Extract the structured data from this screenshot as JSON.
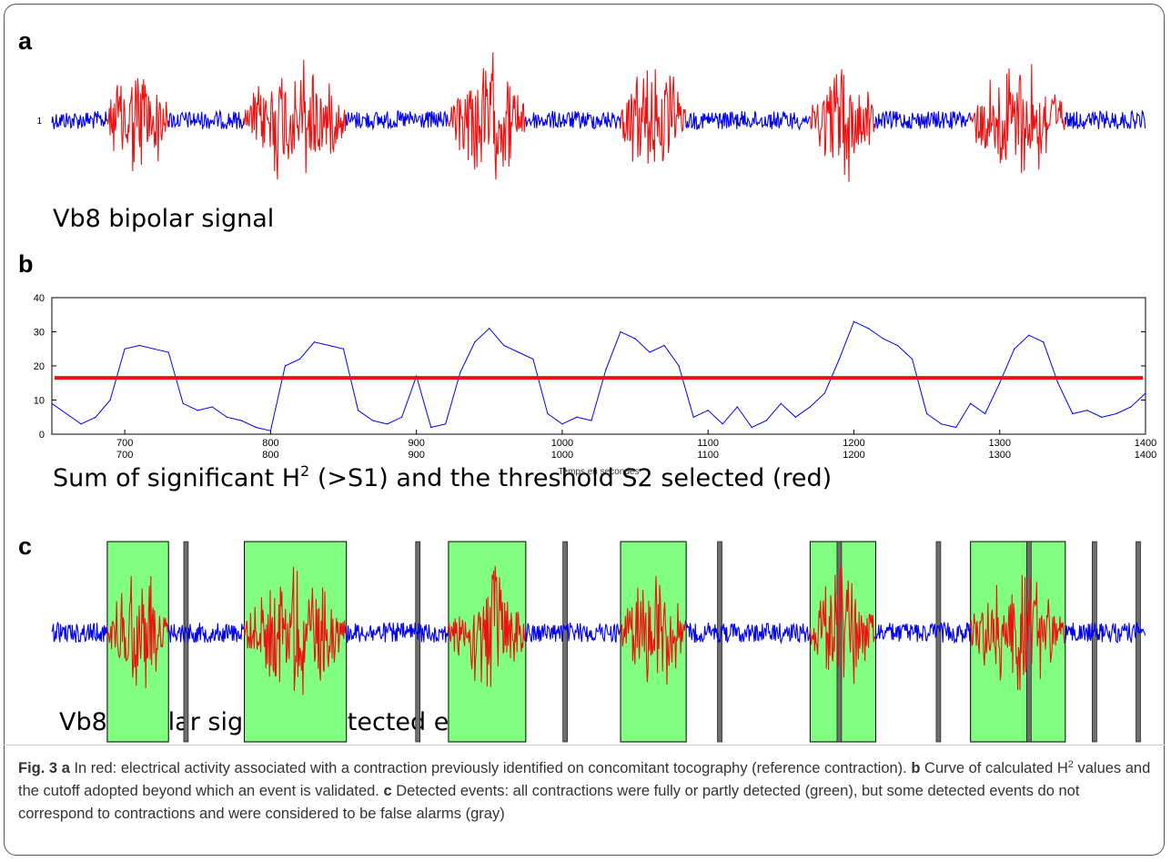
{
  "panels": {
    "a": {
      "letter": "a",
      "caption": "Vb8 bipolar signal",
      "tick_label": "1"
    },
    "b": {
      "letter": "b",
      "caption_pre": "Sum of significant H",
      "caption_sup": "2",
      "caption_post": " (>S1) and the threshold S2 selected (red)",
      "xlabel": "Temps en secondes"
    },
    "c": {
      "letter": "c",
      "caption": "Vb8 bipolar signal + detected events"
    }
  },
  "colors": {
    "signal_blue": "#0000ee",
    "contraction_red": "#ee1111",
    "detected_green": "#80ff80",
    "false_alarm_gray": "#6e6e6e",
    "threshold_red": "#ee1111"
  },
  "chart_data": [
    {
      "type": "line",
      "title": "",
      "xlabel": "",
      "ylabel": "",
      "yticks": [
        "1"
      ],
      "series": [],
      "contraction_segments_seconds": [
        [
          688,
          730
        ],
        [
          782,
          852
        ],
        [
          922,
          975
        ],
        [
          1040,
          1085
        ],
        [
          1170,
          1215
        ],
        [
          1280,
          1345
        ]
      ]
    },
    {
      "type": "line",
      "xlabel": "Temps en secondes",
      "xlim": [
        650,
        1400
      ],
      "ylim": [
        0,
        40
      ],
      "xticks": [
        700,
        800,
        900,
        1000,
        1100,
        1200,
        1300,
        1400
      ],
      "yticks": [
        0,
        10,
        20,
        30,
        40
      ],
      "grid": false,
      "threshold": 16.5,
      "series": [
        {
          "x": [
            650,
            660,
            670,
            680,
            690,
            700,
            710,
            720,
            730,
            740,
            750,
            760,
            770,
            780,
            790,
            800,
            810,
            820,
            830,
            840,
            850,
            860,
            870,
            880,
            890,
            900,
            910,
            920,
            930,
            940,
            950,
            960,
            970,
            980,
            990,
            1000,
            1010,
            1020,
            1030,
            1040,
            1050,
            1060,
            1070,
            1080,
            1090,
            1100,
            1110,
            1120,
            1130,
            1140,
            1150,
            1160,
            1170,
            1180,
            1190,
            1200,
            1210,
            1220,
            1230,
            1240,
            1250,
            1260,
            1270,
            1280,
            1290,
            1300,
            1310,
            1320,
            1330,
            1340,
            1350,
            1360,
            1370,
            1380,
            1390,
            1400
          ],
          "values": [
            9,
            6,
            3,
            5,
            10,
            25,
            26,
            25,
            24,
            9,
            7,
            8,
            5,
            4,
            2,
            1,
            20,
            22,
            27,
            26,
            25,
            7,
            4,
            3,
            5,
            17,
            2,
            3,
            18,
            27,
            31,
            26,
            24,
            22,
            6,
            3,
            5,
            4,
            19,
            30,
            28,
            24,
            26,
            20,
            5,
            7,
            3,
            8,
            2,
            4,
            9,
            5,
            8,
            12,
            22,
            33,
            31,
            28,
            26,
            22,
            6,
            3,
            2,
            9,
            6,
            15,
            25,
            29,
            27,
            15,
            6,
            7,
            5,
            6,
            8,
            12
          ]
        }
      ]
    },
    {
      "type": "line",
      "title": "",
      "series": [],
      "detected_events_green": [
        [
          688,
          730
        ],
        [
          782,
          852
        ],
        [
          922,
          975
        ],
        [
          1040,
          1085
        ],
        [
          1170,
          1215
        ],
        [
          1280,
          1345
        ]
      ],
      "false_alarms_gray": [
        742,
        901,
        1002,
        1108,
        1190,
        1258,
        1320,
        1365,
        1395
      ]
    }
  ],
  "figure_caption": {
    "fig_label": "Fig. 3",
    "a_letter": "a",
    "a_text": " In red: electrical activity associated with a contraction previously identified on concomitant tocography (reference contraction). ",
    "b_letter": "b",
    "b_text_pre": " Curve of calculated H",
    "b_sup": "2",
    "b_text_post": " values and the cutoff adopted beyond which an event is validated. ",
    "c_letter": "c",
    "c_text": " Detected events: all contractions were fully or partly detected (green), but some detected events do not correspond to contractions and were considered to be false alarms (gray)"
  }
}
